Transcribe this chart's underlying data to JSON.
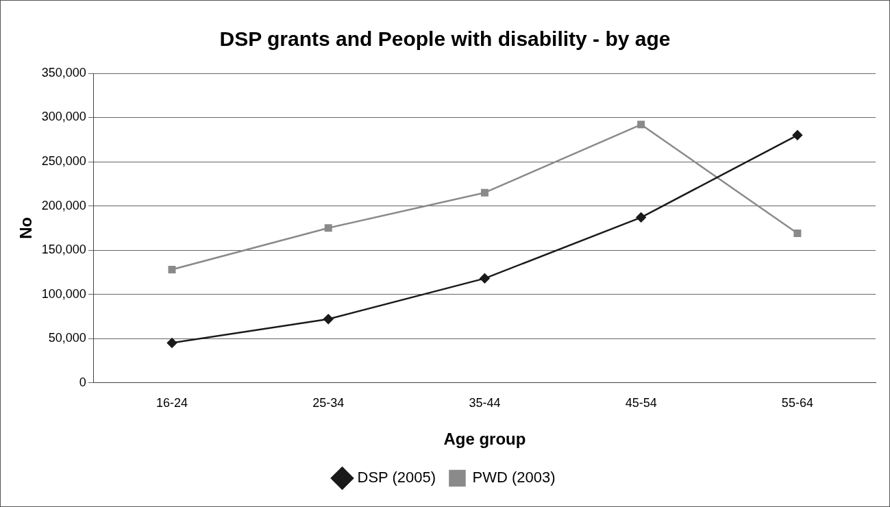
{
  "chart_data": {
    "type": "line",
    "title": "DSP grants and People with disability - by age",
    "xlabel": "Age group",
    "ylabel": "No",
    "categories": [
      "16-24",
      "25-34",
      "35-44",
      "45-54",
      "55-64"
    ],
    "series": [
      {
        "name": "DSP (2005)",
        "color": "#1a1a1a",
        "marker": "diamond",
        "values": [
          45000,
          72000,
          118000,
          187000,
          280000
        ]
      },
      {
        "name": "PWD (2003)",
        "color": "#8a8a8a",
        "marker": "square",
        "values": [
          128000,
          175000,
          215000,
          292000,
          169000
        ]
      }
    ],
    "ylim": [
      0,
      350000
    ],
    "yticks": [
      0,
      {
        "value": 50000,
        "label": "50,000"
      },
      {
        "value": 100000,
        "label": "100,000"
      },
      {
        "value": 150000,
        "label": "150,000"
      },
      {
        "value": 200000,
        "label": "200,000"
      },
      {
        "value": 250000,
        "label": "250,000"
      },
      {
        "value": 300000,
        "label": "300,000"
      },
      {
        "value": 350000,
        "label": "350,000"
      }
    ],
    "grid": "y",
    "legend": "bottom",
    "line_style": "solid"
  }
}
